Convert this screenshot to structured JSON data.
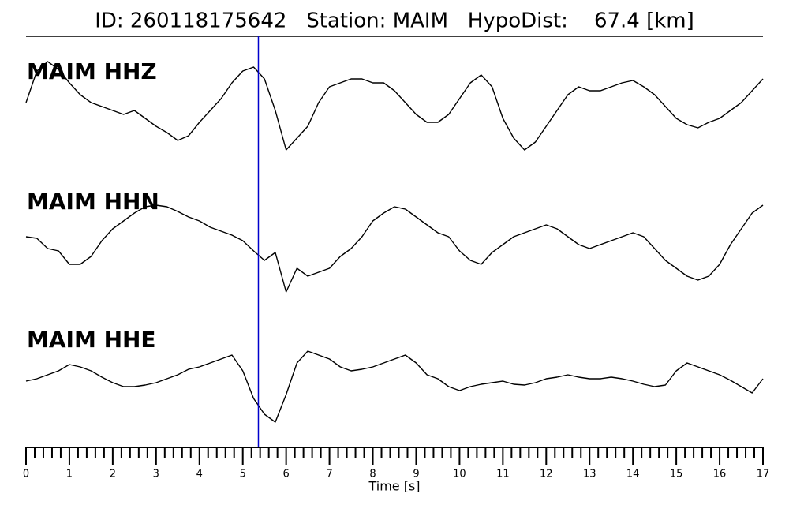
{
  "chart_data": {
    "type": "line",
    "title": "ID: 260118175642   Station: MAIM   HypoDist:    67.4 [km]",
    "xlabel": "Time [s]",
    "xlim": [
      0,
      17
    ],
    "xticks": [
      0,
      1,
      2,
      3,
      4,
      5,
      6,
      7,
      8,
      9,
      10,
      11,
      12,
      13,
      14,
      15,
      16,
      17
    ],
    "xminor": 5,
    "ylim": [
      -80,
      80
    ],
    "pick_time": 5.36,
    "pick_color": "#0000cc",
    "label_color": "#4c9a0a",
    "x": [
      0,
      0.25,
      0.5,
      0.75,
      1,
      1.25,
      1.5,
      1.75,
      2,
      2.25,
      2.5,
      2.75,
      3,
      3.25,
      3.5,
      3.75,
      4,
      4.25,
      4.5,
      4.75,
      5,
      5.25,
      5.5,
      5.75,
      6,
      6.25,
      6.5,
      6.75,
      7,
      7.25,
      7.5,
      7.75,
      8,
      8.25,
      8.5,
      8.75,
      9,
      9.25,
      9.5,
      9.75,
      10,
      10.25,
      10.5,
      10.75,
      11,
      11.25,
      11.5,
      11.75,
      12,
      12.25,
      12.5,
      12.75,
      13,
      13.25,
      13.5,
      13.75,
      14,
      14.25,
      14.5,
      14.75,
      15,
      15.25,
      15.5,
      15.75,
      16,
      16.25,
      16.5,
      16.75,
      17
    ],
    "series": [
      {
        "name": "MAIM HHZ",
        "color": "#000000",
        "values": [
          15,
          55,
          67,
          57,
          40,
          25,
          15,
          10,
          5,
          0,
          5,
          -5,
          -15,
          -23,
          -33,
          -27,
          -10,
          5,
          20,
          40,
          55,
          60,
          45,
          5,
          -45,
          -30,
          -15,
          15,
          35,
          40,
          45,
          45,
          40,
          40,
          30,
          15,
          0,
          -10,
          -10,
          0,
          20,
          40,
          50,
          35,
          -5,
          -30,
          -45,
          -35,
          -15,
          5,
          25,
          35,
          30,
          30,
          35,
          40,
          43,
          35,
          25,
          10,
          -5,
          -13,
          -17,
          -10,
          -5,
          5,
          15,
          30,
          45
        ]
      },
      {
        "name": "MAIM HHN",
        "color": "#000000",
        "values": [
          10,
          8,
          -5,
          -8,
          -25,
          -25,
          -15,
          5,
          20,
          30,
          40,
          48,
          50,
          48,
          42,
          35,
          30,
          22,
          17,
          12,
          5,
          -8,
          -20,
          -10,
          -60,
          -30,
          -40,
          -35,
          -30,
          -15,
          -5,
          10,
          30,
          40,
          48,
          45,
          35,
          25,
          15,
          10,
          -8,
          -20,
          -25,
          -10,
          0,
          10,
          15,
          20,
          25,
          20,
          10,
          0,
          -5,
          0,
          5,
          10,
          15,
          10,
          -5,
          -20,
          -30,
          -40,
          -45,
          -40,
          -25,
          0,
          20,
          40,
          50
        ]
      },
      {
        "name": "MAIM HHE",
        "color": "#000000",
        "values": [
          2,
          5,
          10,
          15,
          23,
          20,
          15,
          7,
          0,
          -5,
          -5,
          -3,
          0,
          5,
          10,
          17,
          20,
          25,
          30,
          35,
          15,
          -20,
          -40,
          -50,
          -15,
          25,
          40,
          35,
          30,
          20,
          15,
          17,
          20,
          25,
          30,
          35,
          25,
          10,
          5,
          -5,
          -10,
          -5,
          -2,
          0,
          2,
          -2,
          -3,
          0,
          5,
          7,
          10,
          7,
          5,
          5,
          7,
          5,
          2,
          -2,
          -5,
          -3,
          15,
          25,
          20,
          15,
          10,
          3,
          -5,
          -13,
          5
        ]
      }
    ]
  }
}
